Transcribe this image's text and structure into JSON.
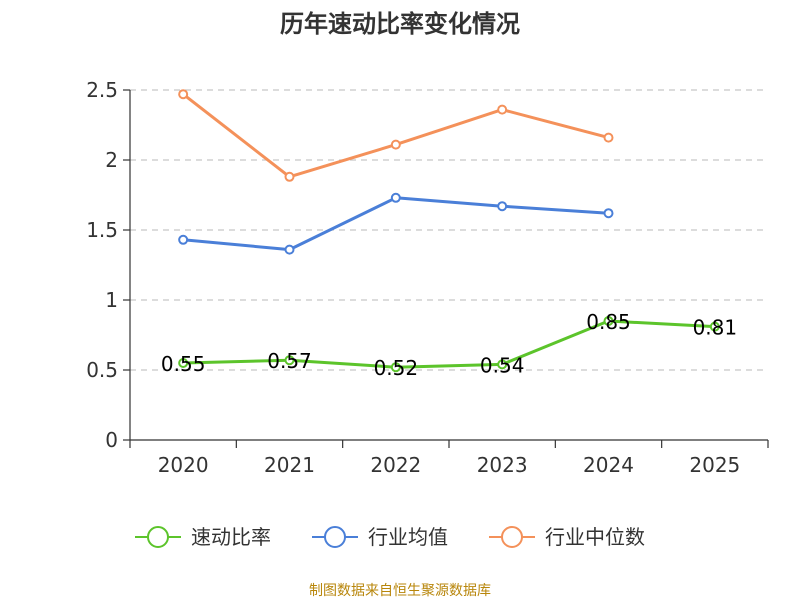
{
  "chart_data": {
    "type": "line",
    "title": "历年速动比率变化情况",
    "categories": [
      "2020",
      "2021",
      "2022",
      "2023",
      "2024",
      "2025"
    ],
    "ylim": [
      0,
      2.5
    ],
    "yticks": [
      "0",
      "0.5",
      "1",
      "1.5",
      "2",
      "2.5"
    ],
    "ytick_values": [
      0,
      0.5,
      1,
      1.5,
      2,
      2.5
    ],
    "grid": true,
    "legend_position": "bottom",
    "series": [
      {
        "name": "速动比率",
        "color": "#5cc42b",
        "values": [
          0.55,
          0.57,
          0.52,
          0.54,
          0.85,
          0.81
        ],
        "labels": [
          "0.55",
          "0.57",
          "0.52",
          "0.54",
          "0.85",
          "0.81"
        ]
      },
      {
        "name": "行业均值",
        "color": "#4a7fd8",
        "values": [
          1.43,
          1.36,
          1.73,
          1.67,
          1.62,
          null
        ]
      },
      {
        "name": "行业中位数",
        "color": "#f4915a",
        "values": [
          2.47,
          1.88,
          2.11,
          2.36,
          2.16,
          null
        ]
      }
    ]
  },
  "source": "制图数据来自恒生聚源数据库"
}
